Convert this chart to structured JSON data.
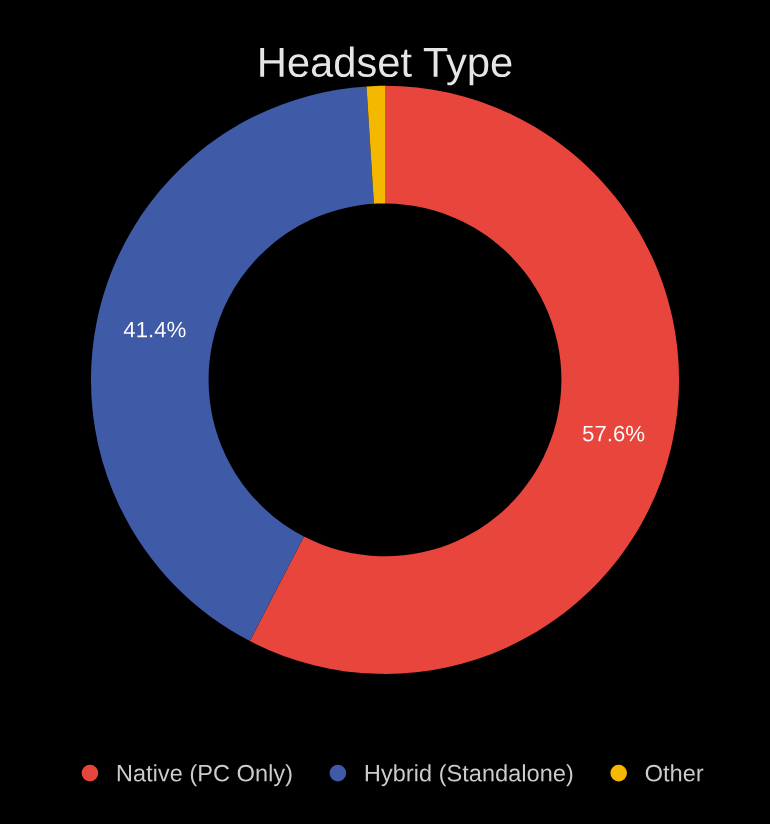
{
  "chart_data": {
    "type": "donut",
    "title": "Headset Type",
    "categories": [
      "Native (PC Only)",
      "Hybrid (Standalone)",
      "Other"
    ],
    "values": [
      57.6,
      41.4,
      1.0
    ],
    "colors": [
      "#e8453c",
      "#3f5aa6",
      "#f5b800"
    ],
    "value_labels": [
      "57.6%",
      "41.4%",
      null
    ],
    "legend": "bottom"
  }
}
